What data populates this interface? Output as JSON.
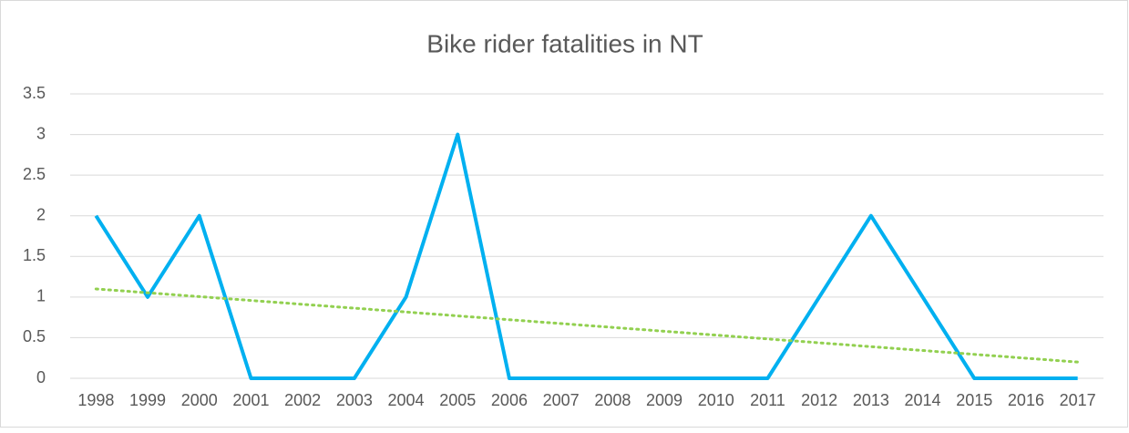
{
  "chart_data": {
    "type": "line",
    "title": "Bike rider fatalities in  NT",
    "categories": [
      "1998",
      "1999",
      "2000",
      "2001",
      "2002",
      "2003",
      "2004",
      "2005",
      "2006",
      "2007",
      "2008",
      "2009",
      "2010",
      "2011",
      "2012",
      "2013",
      "2014",
      "2015",
      "2016",
      "2017"
    ],
    "values": [
      2,
      1,
      2,
      0,
      0,
      0,
      1,
      3,
      0,
      0,
      0,
      0,
      0,
      0,
      1,
      2,
      1,
      0,
      0,
      0
    ],
    "color": "#00b0f0",
    "trendline": {
      "color": "#92d050",
      "start": 1.1,
      "end": 0.2
    },
    "ylim": [
      0,
      3.5
    ],
    "yticks": [
      0,
      0.5,
      1,
      1.5,
      2,
      2.5,
      3,
      3.5
    ],
    "grid": true
  }
}
